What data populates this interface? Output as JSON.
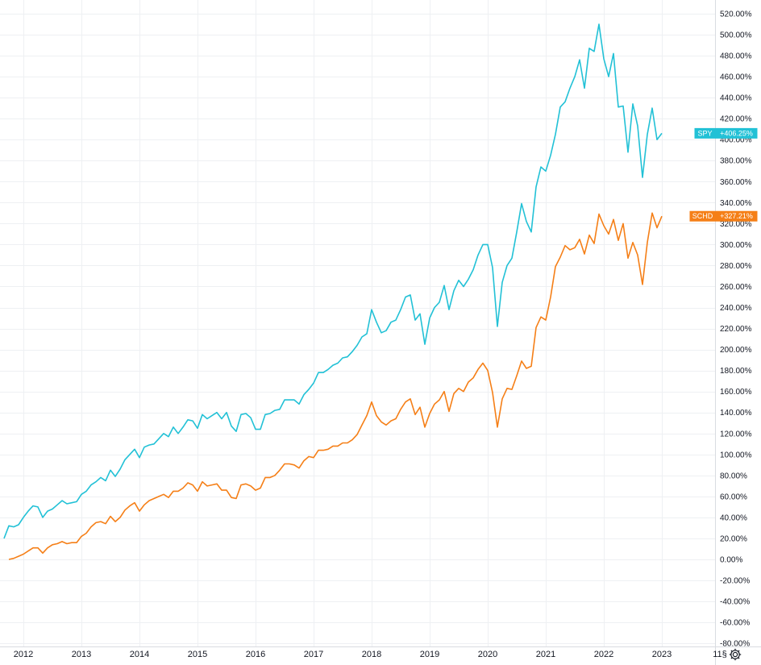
{
  "colors": {
    "spy": "#22c1d6",
    "schd": "#f57f17",
    "grid": "#eef0f3",
    "axis": "#d9dce1",
    "text": "#131722"
  },
  "settings": {
    "icon": "gear-icon"
  },
  "chart_data": {
    "type": "line",
    "title": "",
    "xlabel": "",
    "ylabel": "",
    "y_unit": "%",
    "ylim": [
      -80,
      525
    ],
    "xlim": [
      "2011-09",
      "2023-09"
    ],
    "grid": true,
    "x_tick_labels": [
      "2012",
      "2013",
      "2014",
      "2015",
      "2016",
      "2017",
      "2018",
      "2019",
      "2020",
      "2021",
      "2022",
      "2023",
      "11§"
    ],
    "y_tick_labels": [
      "520.00%",
      "500.00%",
      "480.00%",
      "460.00%",
      "440.00%",
      "420.00%",
      "400.00%",
      "380.00%",
      "360.00%",
      "340.00%",
      "320.00%",
      "300.00%",
      "280.00%",
      "260.00%",
      "240.00%",
      "220.00%",
      "200.00%",
      "180.00%",
      "160.00%",
      "140.00%",
      "120.00%",
      "100.00%",
      "80.00%",
      "60.00%",
      "40.00%",
      "20.00%",
      "0.00%",
      "-20.00%",
      "-40.00%",
      "-60.00%",
      "-80.00%"
    ],
    "y_tick_values": [
      520,
      500,
      480,
      460,
      440,
      420,
      400,
      380,
      360,
      340,
      320,
      300,
      280,
      260,
      240,
      220,
      200,
      180,
      160,
      140,
      120,
      100,
      80,
      60,
      40,
      20,
      0,
      -20,
      -40,
      -60,
      -80
    ],
    "series": [
      {
        "name": "SPY",
        "label": "SPY",
        "last_value_label": "+406.25%",
        "color": "#22c1d6",
        "points": [
          [
            "2011-09",
            20
          ],
          [
            "2011-10",
            32
          ],
          [
            "2011-11",
            31
          ],
          [
            "2011-12",
            33
          ],
          [
            "2012-01",
            40
          ],
          [
            "2012-02",
            46
          ],
          [
            "2012-03",
            51
          ],
          [
            "2012-04",
            50
          ],
          [
            "2012-05",
            40
          ],
          [
            "2012-06",
            46
          ],
          [
            "2012-07",
            48
          ],
          [
            "2012-08",
            52
          ],
          [
            "2012-09",
            56
          ],
          [
            "2012-10",
            53
          ],
          [
            "2012-11",
            54
          ],
          [
            "2012-12",
            55
          ],
          [
            "2013-01",
            62
          ],
          [
            "2013-02",
            65
          ],
          [
            "2013-03",
            71
          ],
          [
            "2013-04",
            74
          ],
          [
            "2013-05",
            78
          ],
          [
            "2013-06",
            75
          ],
          [
            "2013-07",
            85
          ],
          [
            "2013-08",
            79
          ],
          [
            "2013-09",
            86
          ],
          [
            "2013-10",
            95
          ],
          [
            "2013-11",
            100
          ],
          [
            "2013-12",
            105
          ],
          [
            "2014-01",
            97
          ],
          [
            "2014-02",
            107
          ],
          [
            "2014-03",
            109
          ],
          [
            "2014-04",
            110
          ],
          [
            "2014-05",
            115
          ],
          [
            "2014-06",
            120
          ],
          [
            "2014-07",
            117
          ],
          [
            "2014-08",
            126
          ],
          [
            "2014-09",
            120
          ],
          [
            "2014-10",
            126
          ],
          [
            "2014-11",
            133
          ],
          [
            "2014-12",
            132
          ],
          [
            "2015-01",
            125
          ],
          [
            "2015-02",
            138
          ],
          [
            "2015-03",
            134
          ],
          [
            "2015-04",
            137
          ],
          [
            "2015-05",
            140
          ],
          [
            "2015-06",
            134
          ],
          [
            "2015-07",
            140
          ],
          [
            "2015-08",
            127
          ],
          [
            "2015-09",
            122
          ],
          [
            "2015-10",
            138
          ],
          [
            "2015-11",
            139
          ],
          [
            "2015-12",
            135
          ],
          [
            "2016-01",
            124
          ],
          [
            "2016-02",
            124
          ],
          [
            "2016-03",
            138
          ],
          [
            "2016-04",
            139
          ],
          [
            "2016-05",
            142
          ],
          [
            "2016-06",
            143
          ],
          [
            "2016-07",
            152
          ],
          [
            "2016-08",
            152
          ],
          [
            "2016-09",
            152
          ],
          [
            "2016-10",
            148
          ],
          [
            "2016-11",
            157
          ],
          [
            "2016-12",
            162
          ],
          [
            "2017-01",
            168
          ],
          [
            "2017-02",
            178
          ],
          [
            "2017-03",
            178
          ],
          [
            "2017-04",
            181
          ],
          [
            "2017-05",
            185
          ],
          [
            "2017-06",
            187
          ],
          [
            "2017-07",
            192
          ],
          [
            "2017-08",
            193
          ],
          [
            "2017-09",
            198
          ],
          [
            "2017-10",
            204
          ],
          [
            "2017-11",
            212
          ],
          [
            "2017-12",
            215
          ],
          [
            "2018-01",
            238
          ],
          [
            "2018-02",
            226
          ],
          [
            "2018-03",
            216
          ],
          [
            "2018-04",
            218
          ],
          [
            "2018-05",
            226
          ],
          [
            "2018-06",
            228
          ],
          [
            "2018-07",
            238
          ],
          [
            "2018-08",
            250
          ],
          [
            "2018-09",
            252
          ],
          [
            "2018-10",
            228
          ],
          [
            "2018-11",
            234
          ],
          [
            "2018-12",
            205
          ],
          [
            "2019-01",
            230
          ],
          [
            "2019-02",
            240
          ],
          [
            "2019-03",
            245
          ],
          [
            "2019-04",
            261
          ],
          [
            "2019-05",
            238
          ],
          [
            "2019-06",
            256
          ],
          [
            "2019-07",
            266
          ],
          [
            "2019-08",
            260
          ],
          [
            "2019-09",
            267
          ],
          [
            "2019-10",
            276
          ],
          [
            "2019-11",
            290
          ],
          [
            "2019-12",
            300
          ],
          [
            "2020-01",
            300
          ],
          [
            "2020-02",
            278
          ],
          [
            "2020-03",
            222
          ],
          [
            "2020-04",
            264
          ],
          [
            "2020-05",
            280
          ],
          [
            "2020-06",
            287
          ],
          [
            "2020-07",
            312
          ],
          [
            "2020-08",
            339
          ],
          [
            "2020-09",
            322
          ],
          [
            "2020-10",
            312
          ],
          [
            "2020-11",
            355
          ],
          [
            "2020-12",
            374
          ],
          [
            "2021-01",
            370
          ],
          [
            "2021-02",
            385
          ],
          [
            "2021-03",
            405
          ],
          [
            "2021-04",
            431
          ],
          [
            "2021-05",
            436
          ],
          [
            "2021-06",
            449
          ],
          [
            "2021-07",
            460
          ],
          [
            "2021-08",
            476
          ],
          [
            "2021-09",
            449
          ],
          [
            "2021-10",
            487
          ],
          [
            "2021-11",
            484
          ],
          [
            "2021-12",
            510
          ],
          [
            "2022-01",
            477
          ],
          [
            "2022-02",
            460
          ],
          [
            "2022-03",
            482
          ],
          [
            "2022-04",
            431
          ],
          [
            "2022-05",
            432
          ],
          [
            "2022-06",
            388
          ],
          [
            "2022-07",
            434
          ],
          [
            "2022-08",
            413
          ],
          [
            "2022-09",
            364
          ],
          [
            "2022-10",
            405
          ],
          [
            "2022-11",
            430
          ],
          [
            "2022-12",
            400
          ],
          [
            "2023-01",
            406
          ]
        ]
      },
      {
        "name": "SCHD",
        "label": "SCHD",
        "last_value_label": "+327.21%",
        "color": "#f57f17",
        "points": [
          [
            "2011-10",
            0
          ],
          [
            "2011-11",
            1
          ],
          [
            "2011-12",
            3
          ],
          [
            "2012-01",
            5
          ],
          [
            "2012-02",
            8
          ],
          [
            "2012-03",
            11
          ],
          [
            "2012-04",
            11
          ],
          [
            "2012-05",
            6
          ],
          [
            "2012-06",
            11
          ],
          [
            "2012-07",
            14
          ],
          [
            "2012-08",
            15
          ],
          [
            "2012-09",
            17
          ],
          [
            "2012-10",
            15
          ],
          [
            "2012-11",
            16
          ],
          [
            "2012-12",
            16
          ],
          [
            "2013-01",
            22
          ],
          [
            "2013-02",
            25
          ],
          [
            "2013-03",
            31
          ],
          [
            "2013-04",
            35
          ],
          [
            "2013-05",
            36
          ],
          [
            "2013-06",
            34
          ],
          [
            "2013-07",
            41
          ],
          [
            "2013-08",
            36
          ],
          [
            "2013-09",
            40
          ],
          [
            "2013-10",
            47
          ],
          [
            "2013-11",
            51
          ],
          [
            "2013-12",
            54
          ],
          [
            "2014-01",
            46
          ],
          [
            "2014-02",
            52
          ],
          [
            "2014-03",
            56
          ],
          [
            "2014-04",
            58
          ],
          [
            "2014-05",
            60
          ],
          [
            "2014-06",
            62
          ],
          [
            "2014-07",
            59
          ],
          [
            "2014-08",
            65
          ],
          [
            "2014-09",
            65
          ],
          [
            "2014-10",
            68
          ],
          [
            "2014-11",
            73
          ],
          [
            "2014-12",
            71
          ],
          [
            "2015-01",
            65
          ],
          [
            "2015-02",
            74
          ],
          [
            "2015-03",
            70
          ],
          [
            "2015-04",
            71
          ],
          [
            "2015-05",
            72
          ],
          [
            "2015-06",
            66
          ],
          [
            "2015-07",
            66
          ],
          [
            "2015-08",
            59
          ],
          [
            "2015-09",
            58
          ],
          [
            "2015-10",
            71
          ],
          [
            "2015-11",
            72
          ],
          [
            "2015-12",
            70
          ],
          [
            "2016-01",
            66
          ],
          [
            "2016-02",
            68
          ],
          [
            "2016-03",
            78
          ],
          [
            "2016-04",
            78
          ],
          [
            "2016-05",
            80
          ],
          [
            "2016-06",
            85
          ],
          [
            "2016-07",
            91
          ],
          [
            "2016-08",
            91
          ],
          [
            "2016-09",
            90
          ],
          [
            "2016-10",
            87
          ],
          [
            "2016-11",
            94
          ],
          [
            "2016-12",
            98
          ],
          [
            "2017-01",
            97
          ],
          [
            "2017-02",
            104
          ],
          [
            "2017-03",
            104
          ],
          [
            "2017-04",
            105
          ],
          [
            "2017-05",
            108
          ],
          [
            "2017-06",
            108
          ],
          [
            "2017-07",
            111
          ],
          [
            "2017-08",
            111
          ],
          [
            "2017-09",
            114
          ],
          [
            "2017-10",
            119
          ],
          [
            "2017-11",
            128
          ],
          [
            "2017-12",
            137
          ],
          [
            "2018-01",
            150
          ],
          [
            "2018-02",
            137
          ],
          [
            "2018-03",
            131
          ],
          [
            "2018-04",
            128
          ],
          [
            "2018-05",
            132
          ],
          [
            "2018-06",
            134
          ],
          [
            "2018-07",
            143
          ],
          [
            "2018-08",
            150
          ],
          [
            "2018-09",
            153
          ],
          [
            "2018-10",
            138
          ],
          [
            "2018-11",
            145
          ],
          [
            "2018-12",
            126
          ],
          [
            "2019-01",
            139
          ],
          [
            "2019-02",
            148
          ],
          [
            "2019-03",
            152
          ],
          [
            "2019-04",
            160
          ],
          [
            "2019-05",
            141
          ],
          [
            "2019-06",
            158
          ],
          [
            "2019-07",
            163
          ],
          [
            "2019-08",
            160
          ],
          [
            "2019-09",
            169
          ],
          [
            "2019-10",
            173
          ],
          [
            "2019-11",
            181
          ],
          [
            "2019-12",
            187
          ],
          [
            "2020-01",
            180
          ],
          [
            "2020-02",
            159
          ],
          [
            "2020-03",
            126
          ],
          [
            "2020-04",
            153
          ],
          [
            "2020-05",
            163
          ],
          [
            "2020-06",
            162
          ],
          [
            "2020-07",
            175
          ],
          [
            "2020-08",
            189
          ],
          [
            "2020-09",
            182
          ],
          [
            "2020-10",
            184
          ],
          [
            "2020-11",
            221
          ],
          [
            "2020-12",
            231
          ],
          [
            "2021-01",
            228
          ],
          [
            "2021-02",
            250
          ],
          [
            "2021-03",
            279
          ],
          [
            "2021-04",
            288
          ],
          [
            "2021-05",
            299
          ],
          [
            "2021-06",
            295
          ],
          [
            "2021-07",
            297
          ],
          [
            "2021-08",
            305
          ],
          [
            "2021-09",
            291
          ],
          [
            "2021-10",
            309
          ],
          [
            "2021-11",
            301
          ],
          [
            "2021-12",
            329
          ],
          [
            "2022-01",
            318
          ],
          [
            "2022-02",
            310
          ],
          [
            "2022-03",
            324
          ],
          [
            "2022-04",
            304
          ],
          [
            "2022-05",
            320
          ],
          [
            "2022-06",
            287
          ],
          [
            "2022-07",
            302
          ],
          [
            "2022-08",
            290
          ],
          [
            "2022-09",
            262
          ],
          [
            "2022-10",
            302
          ],
          [
            "2022-11",
            330
          ],
          [
            "2022-12",
            316
          ],
          [
            "2023-01",
            327
          ]
        ]
      }
    ]
  }
}
